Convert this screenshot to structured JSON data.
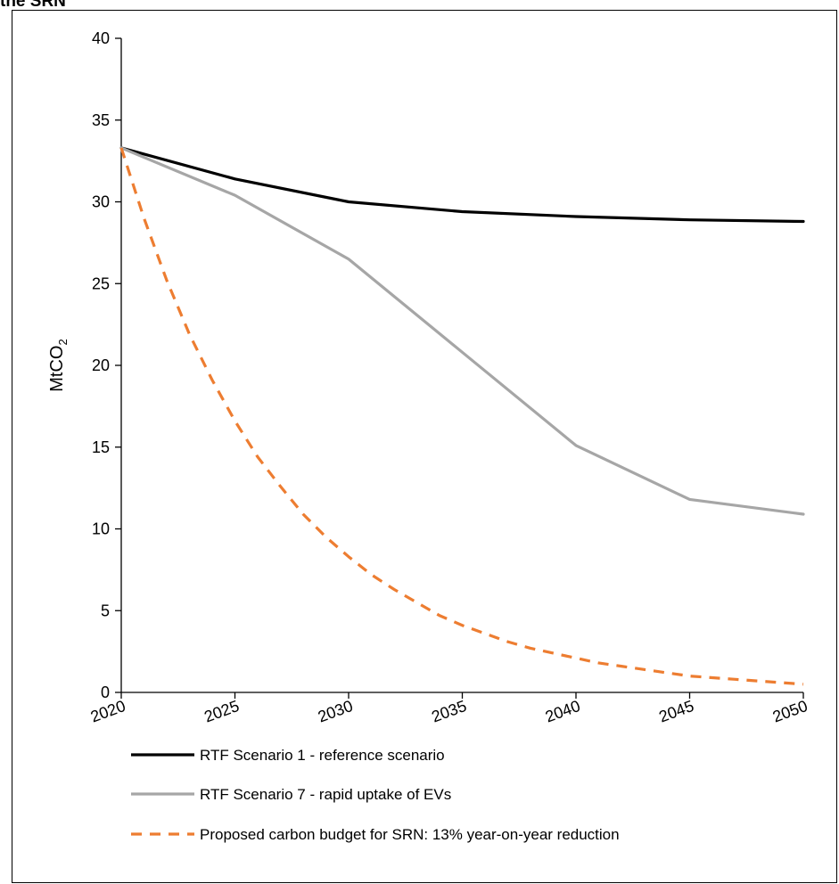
{
  "caption": "the SRN",
  "chart_data": {
    "type": "line",
    "title": "",
    "xlabel": "",
    "ylabel": "MtCO",
    "ylabel_subscript": "2",
    "ylim": [
      0,
      40
    ],
    "yticks": [
      "0",
      "5",
      "10",
      "15",
      "20",
      "25",
      "30",
      "35",
      "40"
    ],
    "xlim": [
      2020,
      2050
    ],
    "xticks": [
      "2020",
      "2025",
      "2030",
      "2035",
      "2040",
      "2045",
      "2050"
    ],
    "grid": false,
    "legend_position": "bottom",
    "series": [
      {
        "name": "RTF Scenario 1 - reference scenario",
        "color": "#000000",
        "style": "solid",
        "x": [
          2020,
          2025,
          2030,
          2035,
          2040,
          2045,
          2050
        ],
        "values": [
          33.3,
          31.4,
          30.0,
          29.4,
          29.1,
          28.9,
          28.8
        ]
      },
      {
        "name": "RTF Scenario 7 - rapid uptake of EVs",
        "color": "#a6a6a6",
        "style": "solid",
        "x": [
          2020,
          2025,
          2030,
          2035,
          2040,
          2045,
          2050
        ],
        "values": [
          33.3,
          30.4,
          26.5,
          20.8,
          15.1,
          11.8,
          10.9
        ]
      },
      {
        "name": "Proposed carbon budget for SRN: 13% year-on-year reduction",
        "color": "#ed7d31",
        "style": "dashed",
        "x": [
          2020,
          2021,
          2022,
          2023,
          2024,
          2025,
          2026,
          2027,
          2028,
          2029,
          2030,
          2031,
          2032,
          2033,
          2034,
          2035,
          2036,
          2037,
          2038,
          2039,
          2040,
          2041,
          2042,
          2043,
          2044,
          2045,
          2046,
          2047,
          2048,
          2049,
          2050
        ],
        "values": [
          33.3,
          29.0,
          25.2,
          21.9,
          19.1,
          16.6,
          14.4,
          12.6,
          10.9,
          9.5,
          8.3,
          7.2,
          6.3,
          5.5,
          4.7,
          4.1,
          3.6,
          3.1,
          2.7,
          2.4,
          2.1,
          1.8,
          1.6,
          1.4,
          1.2,
          1.0,
          0.9,
          0.8,
          0.7,
          0.6,
          0.5
        ]
      }
    ]
  }
}
